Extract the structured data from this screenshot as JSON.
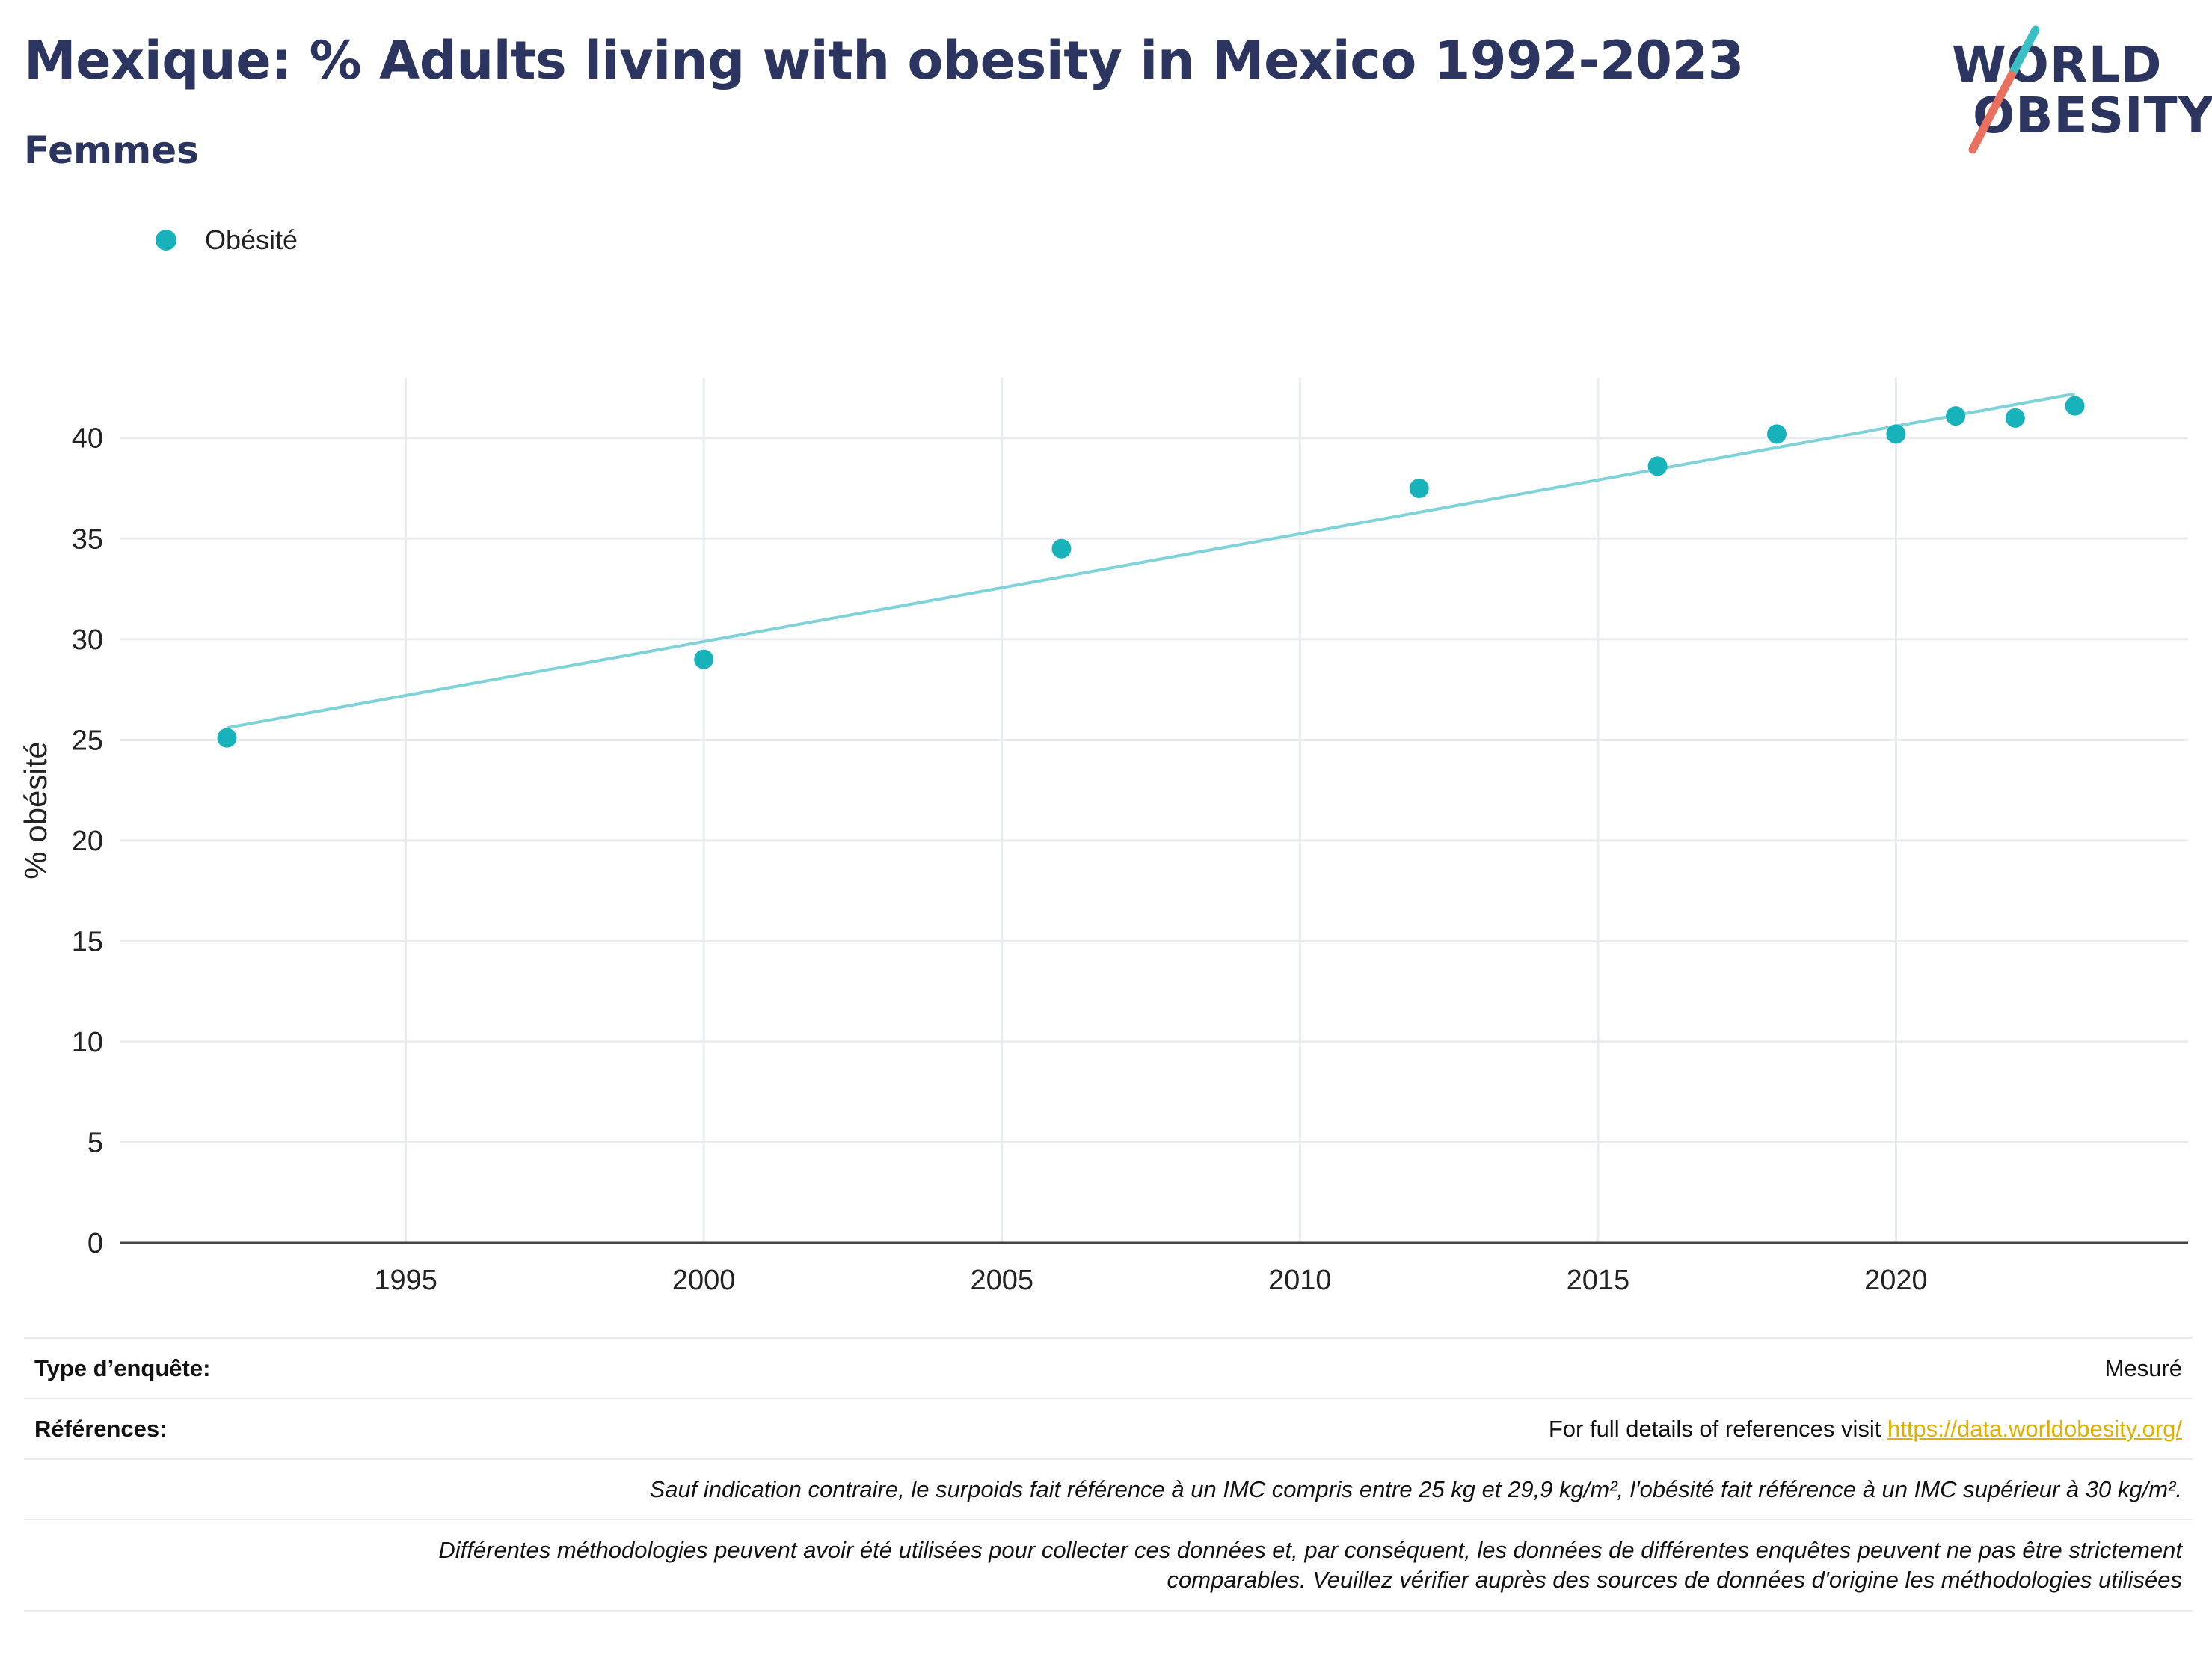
{
  "header": {
    "title": "Mexique: % Adults living with obesity in Mexico 1992-2023",
    "subtitle": "Femmes"
  },
  "logo": {
    "line1": "WORLD",
    "line2": "OBESITY",
    "accent_teal": "#3bbfc4",
    "accent_coral": "#e8705f"
  },
  "colors": {
    "accent": "#18b2bb",
    "trend": "#7fd3d8",
    "text": "#2b3560",
    "link": "#e0b000"
  },
  "chart_data": {
    "type": "scatter",
    "legend": {
      "label": "Obésité",
      "placement": "top-left"
    },
    "ylabel": "% obésité",
    "xlabel": "",
    "xlim": [
      1990.2,
      2024.9
    ],
    "ylim": [
      0,
      43
    ],
    "xticks": [
      "1995",
      "2000",
      "2005",
      "2010",
      "2015",
      "2020"
    ],
    "yticks": [
      "0",
      "5",
      "10",
      "15",
      "20",
      "25",
      "30",
      "35",
      "40"
    ],
    "grid": true,
    "series": [
      {
        "name": "Obésité",
        "points": [
          {
            "x": 1992,
            "y": 25.1
          },
          {
            "x": 2000,
            "y": 29.0
          },
          {
            "x": 2006,
            "y": 34.5
          },
          {
            "x": 2012,
            "y": 37.5
          },
          {
            "x": 2016,
            "y": 38.6
          },
          {
            "x": 2018,
            "y": 40.2
          },
          {
            "x": 2020,
            "y": 40.2
          },
          {
            "x": 2021,
            "y": 41.1
          },
          {
            "x": 2022,
            "y": 41.0
          },
          {
            "x": 2023,
            "y": 41.6
          }
        ]
      }
    ],
    "trendline": {
      "start": {
        "x": 1992,
        "y": 25.6
      },
      "end": {
        "x": 2023,
        "y": 42.2
      }
    }
  },
  "footer": {
    "survey_label": "Type d’enquête:",
    "survey_value": "Mesuré",
    "references_label": "Références:",
    "references_text": "For full details of references visit ",
    "references_link": "https://data.worldobesity.org/",
    "note1": "Sauf indication contraire, le surpoids fait référence à un IMC compris entre 25 kg et 29,9 kg/m², l'obésité fait référence à un IMC supérieur à 30 kg/m².",
    "note2_line1": "Différentes méthodologies peuvent avoir été utilisées pour collecter ces données et, par conséquent, les données de différentes enquêtes peuvent ne pas être strictement",
    "note2_line2": "comparables. Veuillez vérifier auprès des sources de données d'origine les méthodologies utilisées"
  }
}
